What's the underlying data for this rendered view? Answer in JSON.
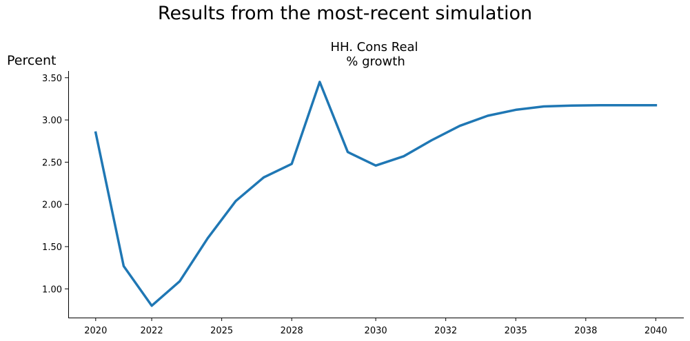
{
  "chart_data": {
    "type": "line",
    "suptitle": "Results from the most-recent simulation",
    "title_line1": "HH. Cons Real",
    "title_line2": "% growth",
    "ylabel": "Percent",
    "xlabel": "",
    "x": [
      2020,
      2021,
      2022,
      2023,
      2024,
      2025,
      2026,
      2027,
      2028,
      2029,
      2030,
      2031,
      2032,
      2033,
      2034,
      2035,
      2036,
      2037,
      2038,
      2039,
      2040
    ],
    "series": [
      {
        "name": "HH. Cons Real % growth",
        "values": [
          2.85,
          1.27,
          0.8,
          1.09,
          1.6,
          2.04,
          2.32,
          2.48,
          3.45,
          2.62,
          2.46,
          2.57,
          2.76,
          2.93,
          3.05,
          3.12,
          3.16,
          3.17,
          3.175,
          3.175,
          3.175
        ],
        "color": "#1f77b4"
      }
    ],
    "xlim": [
      2019.02,
      2041.0
    ],
    "ylim": [
      0.66,
      3.58
    ],
    "yticks": [
      1.0,
      1.5,
      2.0,
      2.5,
      3.0,
      3.5
    ],
    "ytick_labels": [
      "1.00",
      "1.50",
      "2.00",
      "2.50",
      "3.00",
      "3.50"
    ],
    "xticks": [
      2020,
      2021.875,
      2023.75,
      2025.625,
      2027.5,
      2029.375,
      2031.25,
      2033.125,
      2035,
      2036.875,
      2038.75
    ],
    "xtick_labels": [
      "2020",
      "2022",
      "2025",
      "2028",
      "2030",
      "2032",
      "2035",
      "2038",
      "2040"
    ],
    "xtick_label_positions": [
      2020,
      2022,
      2024.5,
      2027,
      2030,
      2032.5,
      2035,
      2037.5,
      2040
    ],
    "grid": false,
    "legend": "none"
  }
}
